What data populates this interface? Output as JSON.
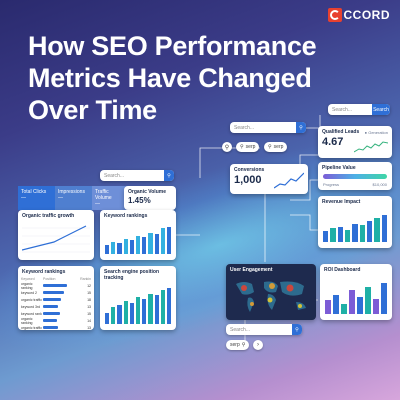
{
  "brand": {
    "logo_text": "CCORD",
    "accent": "#e8412f"
  },
  "title_lines": [
    "How SEO Performance",
    "Metrics Have Changed",
    "Over Time"
  ],
  "searches": {
    "top_right": {
      "placeholder": "Search...",
      "button": "Search"
    },
    "mid": {
      "placeholder": "Search..."
    },
    "left": {
      "placeholder": "Search..."
    },
    "bottom": {
      "placeholder": "Search..."
    }
  },
  "pills": {
    "serp1": "serp",
    "serp2": "serp",
    "serp3": "serp"
  },
  "tabs": [
    "Total Clicks",
    "Impressions",
    "Traffic Volume"
  ],
  "tab_values": [
    "—",
    "—",
    "—"
  ],
  "cards": {
    "organic_volume": {
      "title": "Organic Volume",
      "value": "1.45%"
    },
    "qualified_leads": {
      "title": "Qualified Leads",
      "legend": "Generation",
      "value": "4.67"
    },
    "conversions": {
      "title": "Conversions",
      "value": "1,000"
    },
    "pipeline": {
      "title": "Pipeline Value",
      "left": "Progress",
      "right": "$10,000",
      "progress": 0.7
    },
    "revenue": {
      "title": "Revenue Impact"
    },
    "organic_growth": {
      "title": "Organic traffic growth"
    },
    "kw_rankings_top": {
      "title": "Keyword rankings"
    },
    "kw_rankings_table": {
      "title": "Keyword rankings",
      "headers": [
        "Keyword",
        "Position",
        "Rankin"
      ],
      "rows": [
        {
          "k": "organic ranking",
          "v": 0.8,
          "n": "12"
        },
        {
          "k": "keyword 2",
          "v": 0.7,
          "n": "15"
        },
        {
          "k": "organic traffic",
          "v": 0.6,
          "n": "18"
        },
        {
          "k": "keyword 3rd",
          "v": 0.5,
          "n": "13"
        },
        {
          "k": "keyword rank",
          "v": 0.55,
          "n": "15"
        },
        {
          "k": "organic ranking",
          "v": 0.45,
          "n": "14"
        },
        {
          "k": "organic traffic",
          "v": 0.5,
          "n": "13"
        }
      ]
    },
    "sep_tracking": {
      "title": "Search engine position tracking"
    },
    "user_engagement": {
      "title": "User Engagement"
    },
    "roi": {
      "title": "ROI Dashboard"
    }
  }
}
